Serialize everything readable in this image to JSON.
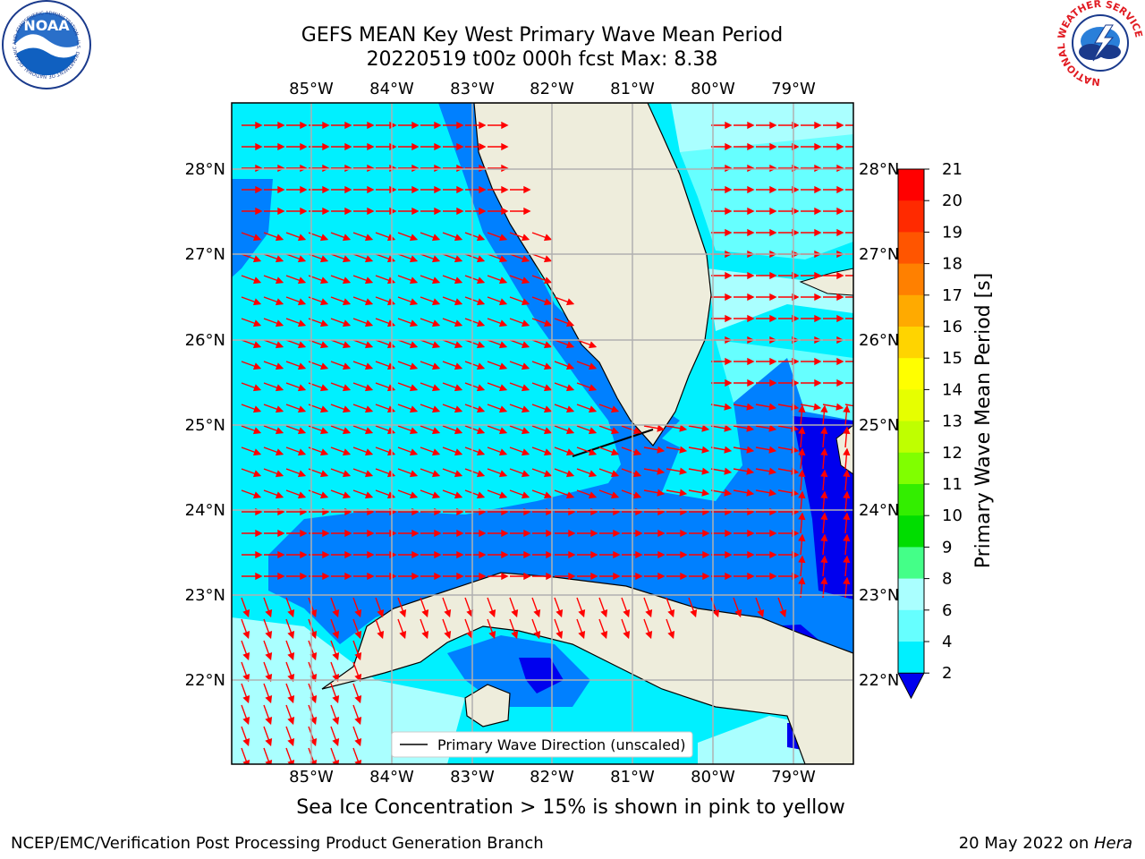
{
  "header": {
    "title_line1": "GEFS MEAN Key West Primary Wave Mean Period",
    "title_line2": "20220519 t00z 000h fcst   Max: 8.38"
  },
  "logos": {
    "left": "noaa-logo-icon",
    "right": "nws-logo-icon",
    "noaa_text": "NOAA",
    "noaa_ring_text": "NATIONAL OCEANIC AND ATMOSPHERIC ADMINISTRATION · U.S. DEPARTMENT OF COMMERCE",
    "nws_ring_text": "NATIONAL WEATHER SERVICE"
  },
  "map": {
    "lon_labels": [
      "85°W",
      "84°W",
      "83°W",
      "82°W",
      "81°W",
      "80°W",
      "79°W"
    ],
    "lat_labels": [
      "28°N",
      "27°N",
      "26°N",
      "25°N",
      "24°N",
      "23°N",
      "22°N"
    ],
    "legend_label": "Primary Wave Direction (unscaled)",
    "colors": {
      "land": "#eeeddc",
      "arrows": "#ff0000",
      "grid": "#b0b0b0"
    }
  },
  "colorbar": {
    "label": "Primary Wave Mean Period [s]",
    "ticks": [
      "21",
      "20",
      "19",
      "18",
      "17",
      "16",
      "15",
      "14",
      "13",
      "12",
      "11",
      "10",
      "9",
      "8",
      "6",
      "4",
      "2"
    ],
    "colors": [
      "#ff0000",
      "#ff2a00",
      "#ff5500",
      "#ff8000",
      "#ffaa00",
      "#ffd400",
      "#ffff00",
      "#e6ff00",
      "#bfff00",
      "#80ff00",
      "#33ee00",
      "#00dd00",
      "#44ff88",
      "#aaffff",
      "#66ffff",
      "#00f0ff",
      "#0080ff"
    ],
    "extend_color": "#0000ee"
  },
  "bottom_note": "Sea Ice Concentration > 15% is shown in pink to yellow",
  "footer": {
    "left": "NCEP/EMC/Verification Post Processing Product Generation Branch",
    "right_prefix": "20 May 2022 on ",
    "right_machine": "Hera"
  }
}
